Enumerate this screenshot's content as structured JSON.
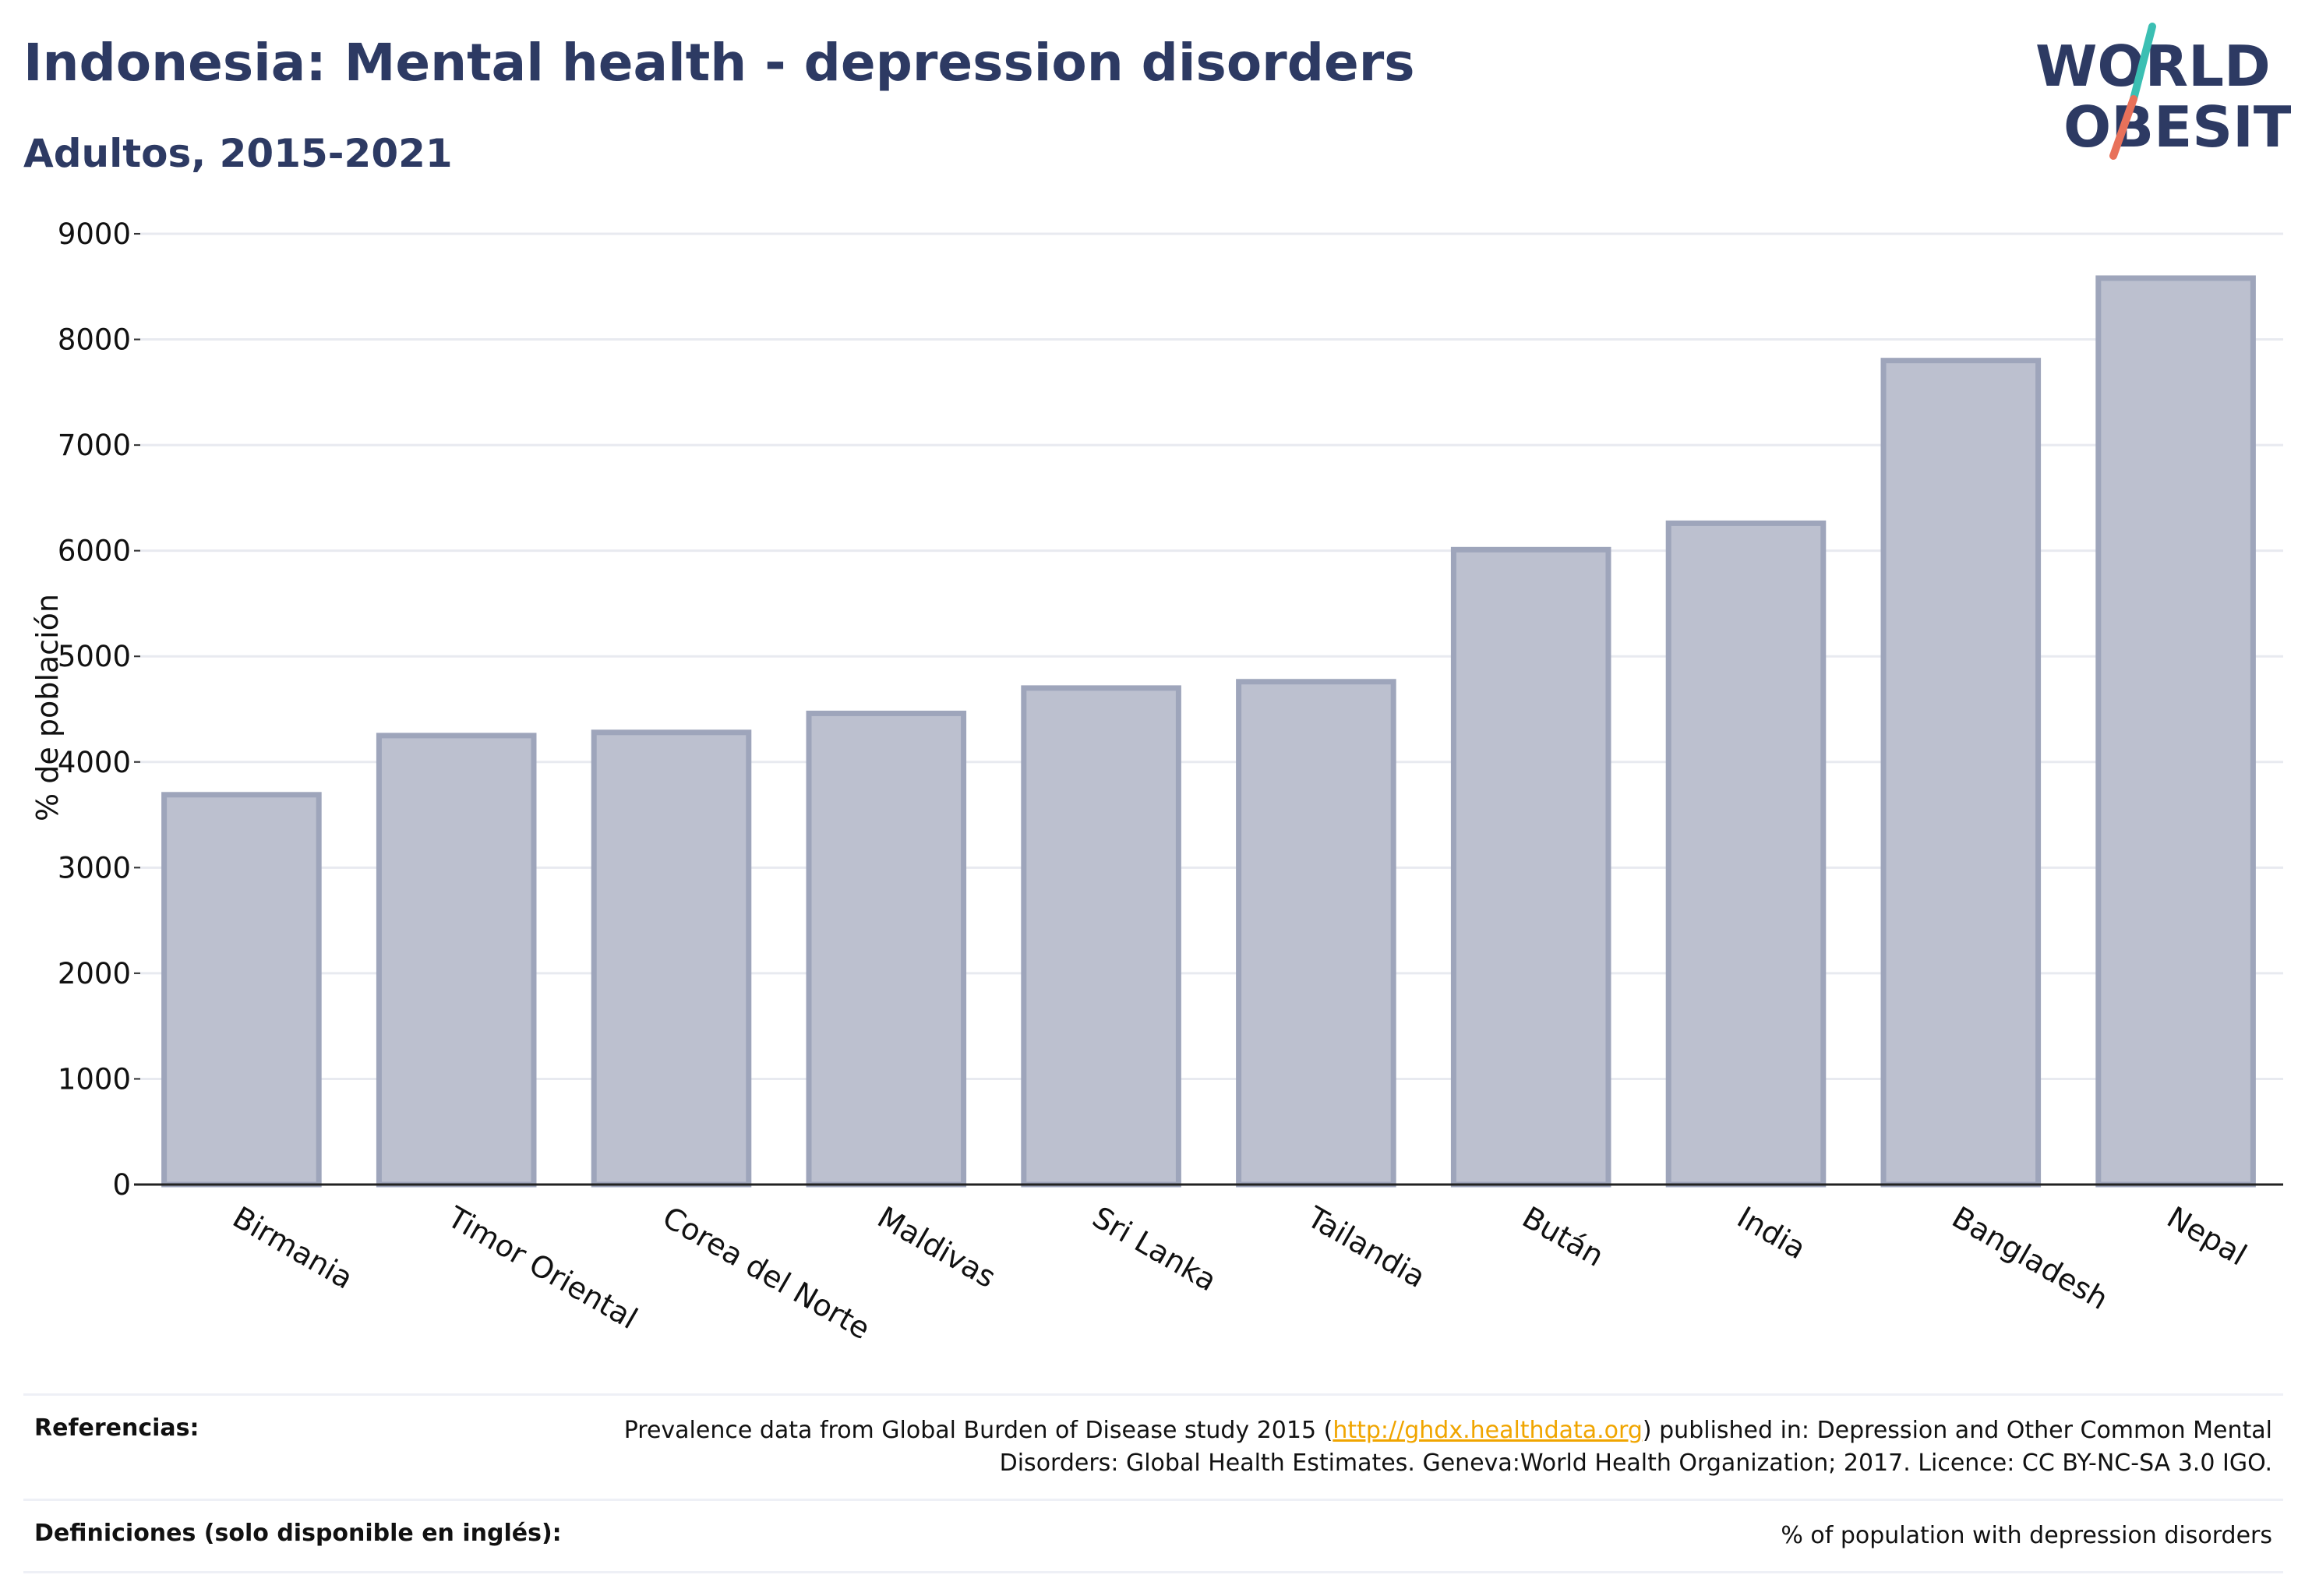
{
  "header": {
    "title": "Indonesia: Mental health - depression disorders",
    "subtitle": "Adultos, 2015-2021"
  },
  "logo": {
    "line1": "WORLD",
    "line2": "OBESITY",
    "colors": {
      "text": "#2d3a63",
      "slash_top": "#3bbfb3",
      "slash_bottom": "#e8715a"
    }
  },
  "chart_data": {
    "type": "bar",
    "title": "",
    "xlabel": "",
    "ylabel": "% de población",
    "ylim": [
      0,
      9000
    ],
    "yticks": [
      0,
      1000,
      2000,
      3000,
      4000,
      5000,
      6000,
      7000,
      8000,
      9000
    ],
    "grid": true,
    "bar_color": "#bcc0cf",
    "bar_edge_color": "#9ea5bb",
    "categories": [
      "Birmania",
      "Timor Oriental",
      "Corea del Norte",
      "Maldivas",
      "Sri Lanka",
      "Tailandia",
      "Bután",
      "India",
      "Bangladesh",
      "Nepal"
    ],
    "values": [
      3690,
      4250,
      4280,
      4460,
      4700,
      4760,
      6010,
      6260,
      7800,
      8580
    ]
  },
  "footer": {
    "references_label": "Referencias:",
    "references_text_1": "Prevalence data from Global Burden of Disease study 2015 (",
    "references_link": "http://ghdx.healthdata.org",
    "references_text_2": ") published in: Depression and Other Common Mental Disorders: Global Health Estimates. Geneva:World Health Organization; 2017. Licence: CC BY-NC-SA 3.0 IGO.",
    "definitions_label": "Definiciones (solo disponible en inglés):",
    "definitions_text": "% of population with depression disorders"
  }
}
